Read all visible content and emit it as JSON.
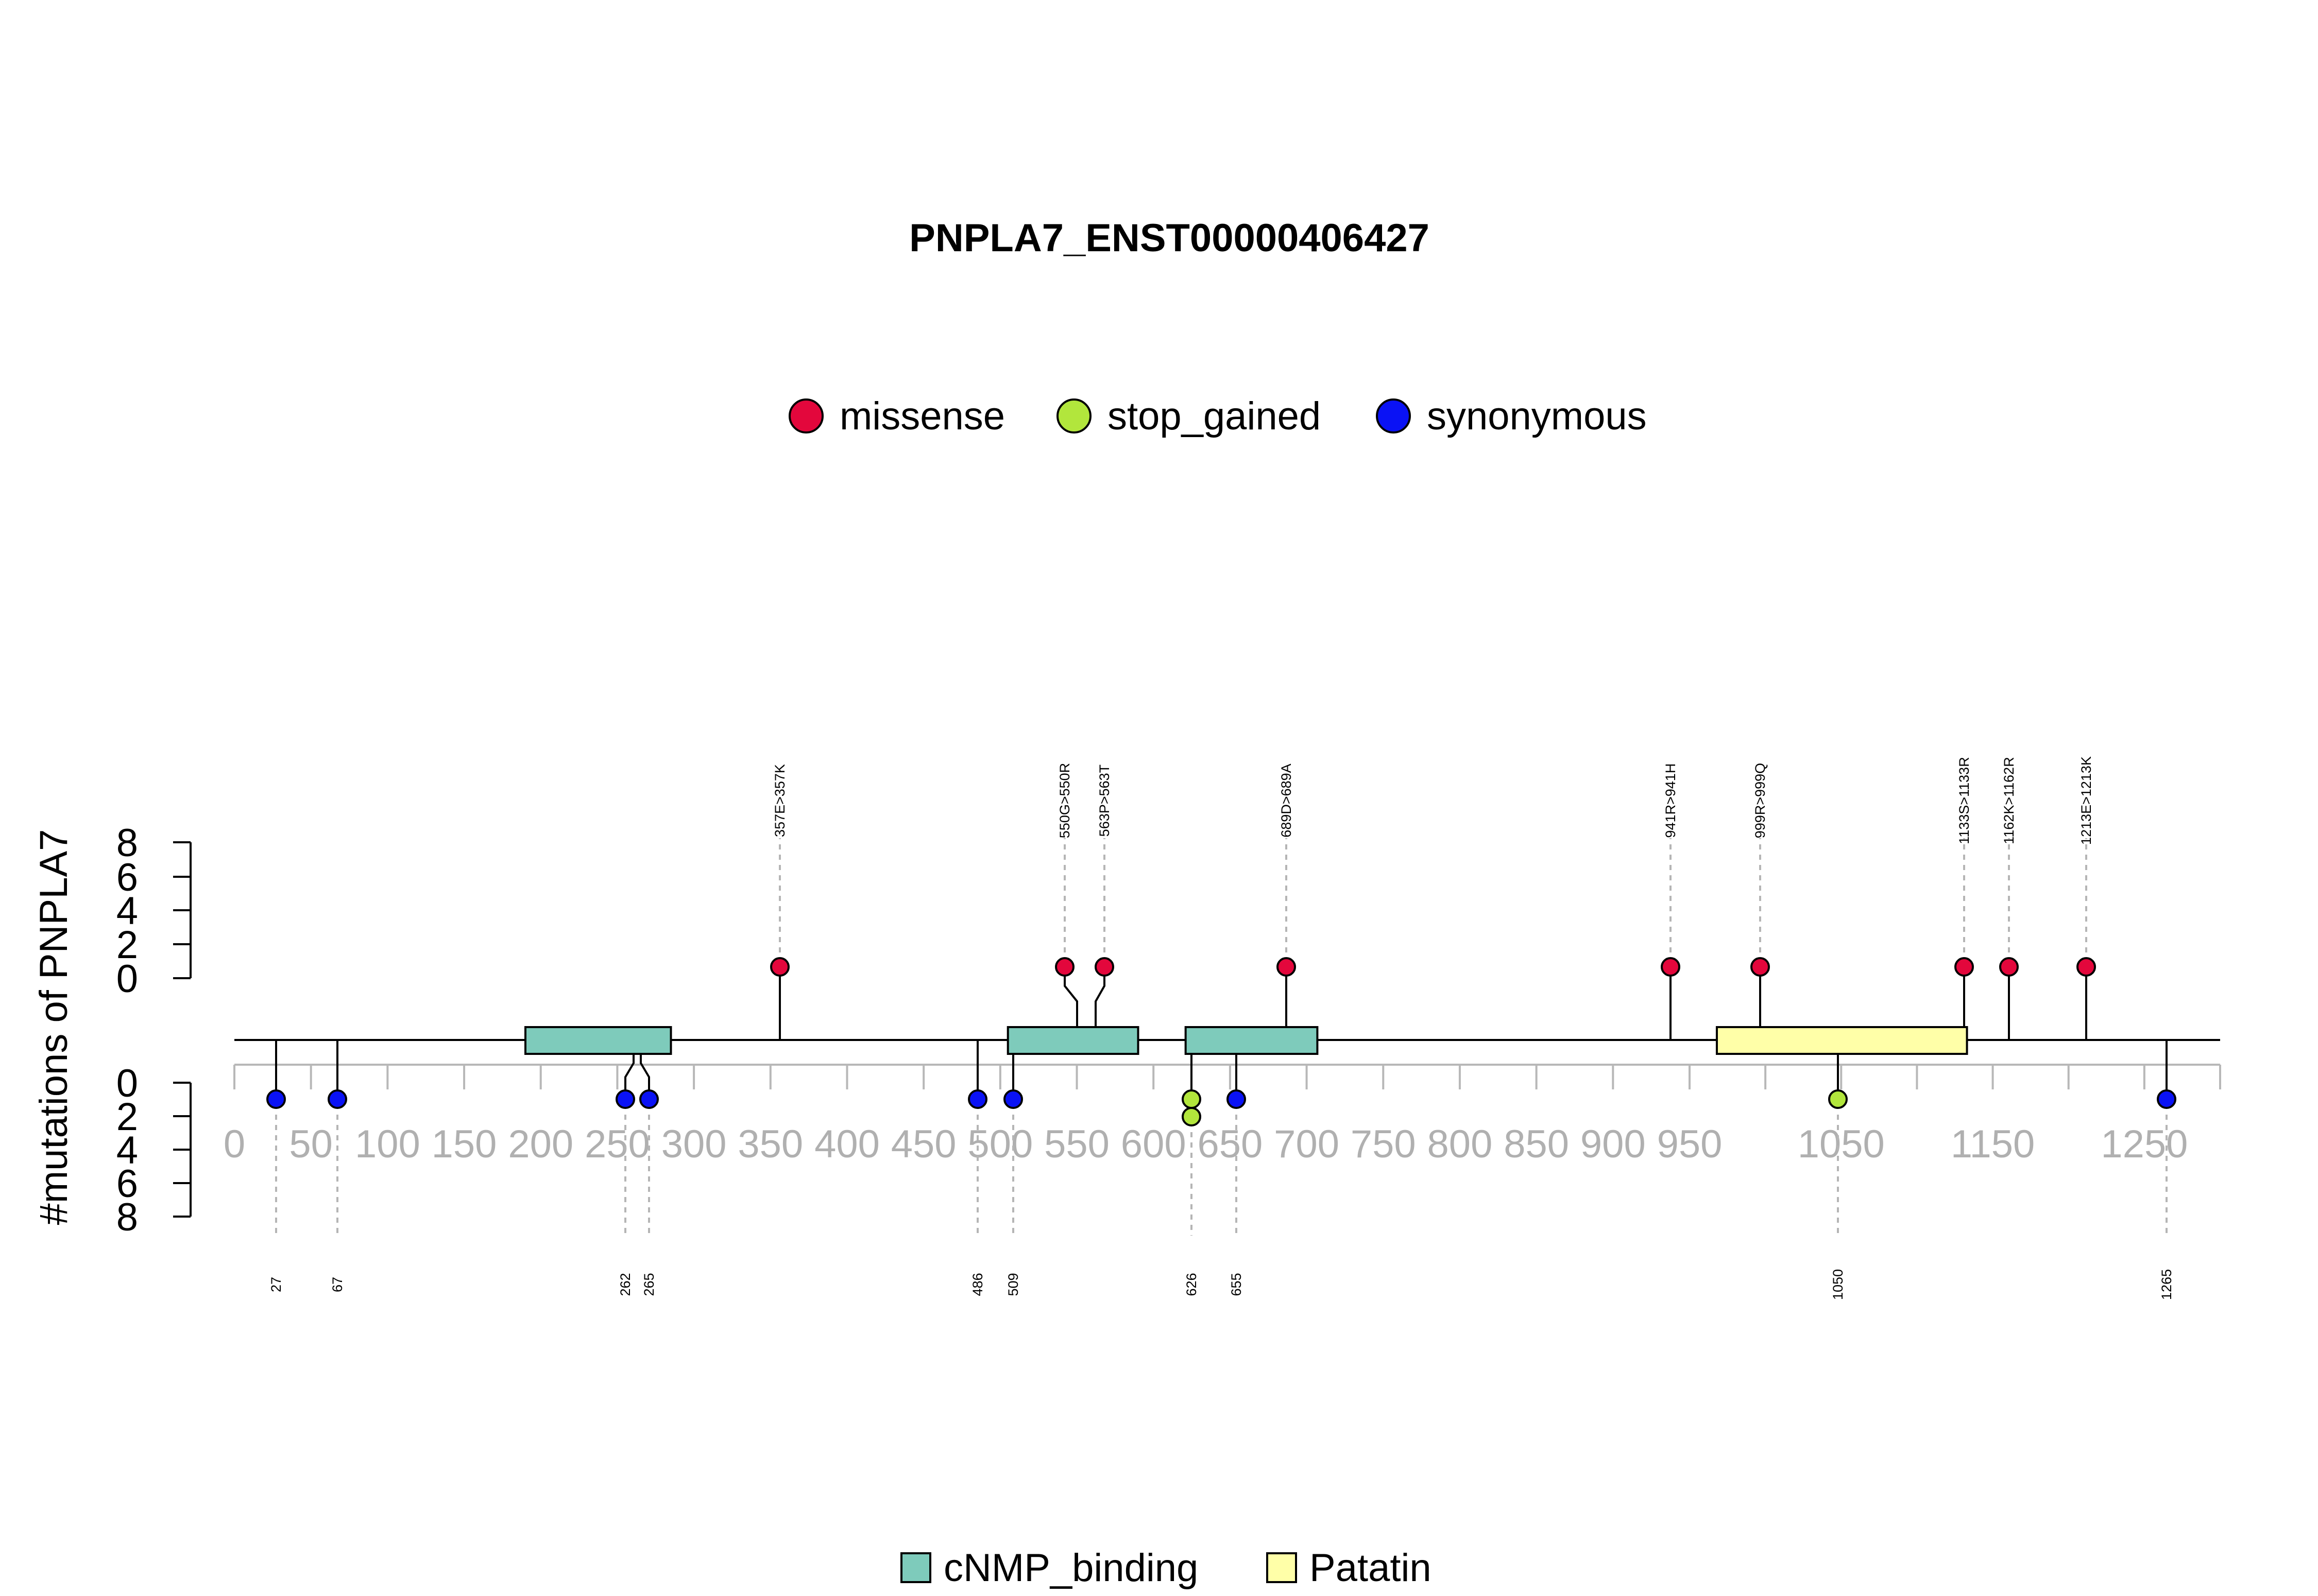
{
  "chart_data": {
    "type": "lollipop",
    "title": "PNPLA7_ENST00000406427",
    "ylabel": "#mutations of PNPLA7",
    "y_ticks": [
      "0",
      "2",
      "4",
      "6",
      "8"
    ],
    "x_ticks": [
      "0",
      "50",
      "100",
      "150",
      "200",
      "250",
      "300",
      "350",
      "400",
      "450",
      "500",
      "550",
      "600",
      "650",
      "700",
      "750",
      "800",
      "850",
      "900",
      "950",
      "1050",
      "1150",
      "1250"
    ],
    "legend_mutations": [
      {
        "label": "missense",
        "color": "#e3073c"
      },
      {
        "label": "stop_gained",
        "color": "#b2e63c"
      },
      {
        "label": "synonymous",
        "color": "#0a12f5"
      }
    ],
    "legend_domains": [
      {
        "label": "cNMP_binding",
        "color": "#7ecbbb"
      },
      {
        "label": "Patatin",
        "color": "#ffffa8"
      }
    ],
    "domains": [
      {
        "name": "cNMP_binding",
        "start": 190,
        "end": 285
      },
      {
        "name": "cNMP_binding",
        "start": 505,
        "end": 590
      },
      {
        "name": "cNMP_binding",
        "start": 621,
        "end": 707
      },
      {
        "name": "Patatin",
        "start": 968,
        "end": 1133
      }
    ],
    "mutations_above": [
      {
        "pos": 357,
        "label": "357E>357K",
        "type": "missense",
        "count": 1
      },
      {
        "pos": 550,
        "label": "550G>550R",
        "type": "missense",
        "count": 1
      },
      {
        "pos": 563,
        "label": "563P>563T",
        "type": "missense",
        "count": 1
      },
      {
        "pos": 689,
        "label": "689D>689A",
        "type": "missense",
        "count": 1
      },
      {
        "pos": 941,
        "label": "941R>941H",
        "type": "missense",
        "count": 1
      },
      {
        "pos": 999,
        "label": "999R>999Q",
        "type": "missense",
        "count": 1
      },
      {
        "pos": 1133,
        "label": "1133S>1133R",
        "type": "missense",
        "count": 1
      },
      {
        "pos": 1162,
        "label": "1162K>1162R",
        "type": "missense",
        "count": 1
      },
      {
        "pos": 1213,
        "label": "1213E>1213K",
        "type": "missense",
        "count": 1
      }
    ],
    "mutations_below": [
      {
        "pos": 27,
        "label": "27",
        "type": "synonymous",
        "count": 1
      },
      {
        "pos": 67,
        "label": "67",
        "type": "synonymous",
        "count": 1
      },
      {
        "pos": 262,
        "label": "262",
        "type": "synonymous",
        "count": 1
      },
      {
        "pos": 265,
        "label": "265",
        "type": "synonymous",
        "count": 1
      },
      {
        "pos": 486,
        "label": "486",
        "type": "synonymous",
        "count": 1
      },
      {
        "pos": 509,
        "label": "509",
        "type": "synonymous",
        "count": 1
      },
      {
        "pos": 626,
        "label": "626",
        "type": "stop_gained",
        "count": 2
      },
      {
        "pos": 655,
        "label": "655",
        "type": "synonymous",
        "count": 1
      },
      {
        "pos": 1050,
        "label": "1050",
        "type": "stop_gained",
        "count": 1
      },
      {
        "pos": 1265,
        "label": "1265",
        "type": "synonymous",
        "count": 1
      }
    ]
  }
}
